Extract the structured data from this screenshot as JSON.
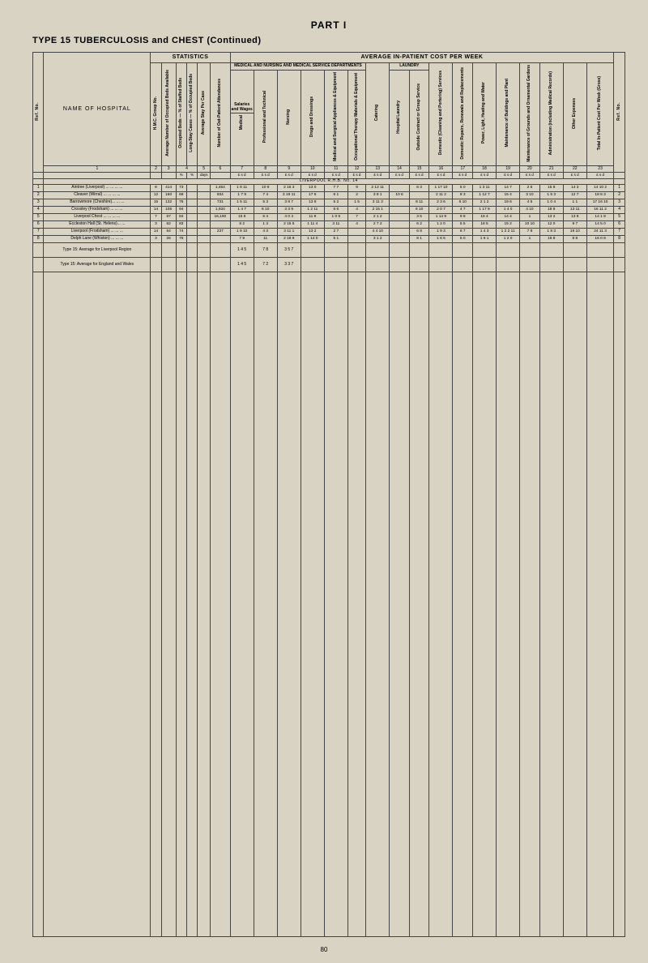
{
  "page_number": "80",
  "headings": {
    "part": "PART I",
    "type_line": "TYPE 15  TUBERCULOSIS and CHEST (Continued)"
  },
  "header": {
    "statistics": "STATISTICS",
    "avg_cost": "AVERAGE IN-PATIENT COST PER WEEK",
    "name_of_hospital": "NAME OF HOSPITAL",
    "med_nursing_top": "MEDICAL AND NURSING AND MEDICAL SERVICE DEPARTMENTS",
    "salaries_wages": "Salaries and Wages",
    "laundry": "LAUNDRY",
    "ref_no_left": "Ref. No.",
    "ref_no_right": "Ref. No.",
    "vcols": {
      "c2": "H.M.C. Group No.",
      "c3": "Average Number of Occupied Beds Available",
      "c4": "Occupied Beds — % of Staffed Beds",
      "c4b": "Long-Stay Cases — % of Occupied Beds",
      "c5": "Average Stay Per Case",
      "c6": "Number of Out-Patient Attendances",
      "c7": "Medical",
      "c8": "Professional and Technical",
      "c9": "Nursing",
      "c10": "Drugs and Dressings",
      "c11": "Medical and Surgical Appliances & Equipment",
      "c12": "Occupational Therapy Materials & Equipment",
      "c13": "Catering",
      "c14": "Hospital Laundry",
      "c15": "Outside Contract or Group Service",
      "c16": "Domestic (Cleaning and Portering) Services",
      "c17": "Domestic Repairs, Renewals and Replacements",
      "c18": "Power, Light, Heating and Water",
      "c19": "Maintenance of Buildings and Plant",
      "c20": "Maintenance of Grounds and Ornamental Gardens",
      "c21": "Administration (including Medical Records)",
      "c22": "Other Expenses",
      "c23": "Total In-Patient Cost Per Week (Gross)"
    },
    "colnums": [
      "1",
      "2",
      "3",
      "4",
      "5",
      "6",
      "7",
      "8",
      "9",
      "10",
      "11",
      "12",
      "13",
      "14",
      "15",
      "16",
      "17",
      "18",
      "19",
      "20",
      "21",
      "22",
      "23"
    ],
    "units_pct": "%",
    "units_days": "days",
    "units_lsd": "£  s  d"
  },
  "region": {
    "label": "LIVERPOOL  R.H.B. No. 14"
  },
  "hospitals": [
    {
      "ref": "1",
      "name": "Aintree (Liverpool) ... ... ... ...",
      "c2": "8",
      "c3": "414",
      "c4": "73",
      "c5": "",
      "c6": "1,454",
      "c7": "1 6 11",
      "c8": "10 9",
      "c9": "2 16 3",
      "c10": "13 0",
      "c11": "7 7",
      "c12": "9",
      "c13": "2 12 11",
      "c14": "",
      "c15": "6 3",
      "c16": "1 17 10",
      "c17": "5 0",
      "c18": "1 3 11",
      "c19": "14 7",
      "c20": "2 6",
      "c21": "15 8",
      "c22": "14 3",
      "c23": "14 10 2",
      "refR": "1"
    },
    {
      "ref": "2",
      "name": "Cleaver (Wirral) ... ... ... ...",
      "c2": "12",
      "c3": "160",
      "c4": "69",
      "c5": "",
      "c6": "934",
      "c7": "1 7 9",
      "c8": "7 4",
      "c9": "3 19 11",
      "c10": "17 6",
      "c11": "6 1",
      "c12": "2",
      "c13": "3 8 1",
      "c14": "10 6",
      "c15": "",
      "c16": "2 11 2",
      "c17": "8 3",
      "c18": "1 12 7",
      "c19": "15 4",
      "c20": "3 10",
      "c21": "1 5 3",
      "c22": "12 7",
      "c23": "18 6 3",
      "refR": "2"
    },
    {
      "ref": "3",
      "name": "Barrowmore (Cheshire)... ... ...",
      "c2": "15",
      "c3": "132",
      "c4": "76",
      "c5": "",
      "c6": "731",
      "c7": "1 5 11",
      "c8": "5 3",
      "c9": "3 8 7",
      "c10": "13 8",
      "c11": "5 2",
      "c12": "1 5",
      "c13": "3 11 3",
      "c14": "",
      "c15": "8 11",
      "c16": "2 3 6",
      "c17": "6 10",
      "c18": "2 1 2",
      "c19": "19 6",
      "c20": "4 5",
      "c21": "1 0 4",
      "c22": "1 1",
      "c23": "17 16 10",
      "refR": "3"
    },
    {
      "ref": "4",
      "name": "Crossley (Frodsham) ... ... ...",
      "c2": "14",
      "c3": "105",
      "c4": "94",
      "c5": "",
      "c6": "1,934",
      "c7": "1 4 7",
      "c8": "6 10",
      "c9": "3 3 9",
      "c10": "1 2 11",
      "c11": "6 6",
      "c12": "4",
      "c13": "2 15 1",
      "c14": "",
      "c15": "6 10",
      "c16": "2 0 7",
      "c17": "4 7",
      "c18": "1 17 9",
      "c19": "1 4 0",
      "c20": "4 10",
      "c21": "18 8",
      "c22": "13 11",
      "c23": "16 11 2",
      "refR": "4"
    },
    {
      "ref": "5",
      "name": "Liverpool Chest ... ... ... ...",
      "c2": "7",
      "c3": "67",
      "c4": "84",
      "c5": "",
      "c6": "16,190",
      "c7": "15 8",
      "c8": "6 4",
      "c9": "4 0 4",
      "c10": "11 9",
      "c11": "1 0 5",
      "c12": "7",
      "c13": "2 1 2",
      "c14": "",
      "c15": "3 5",
      "c16": "1 14 9",
      "c17": "9 8",
      "c18": "16 4",
      "c19": "14 4",
      "c20": "1",
      "c21": "13 2",
      "c22": "13 8",
      "c23": "14 1 8",
      "refR": "5"
    },
    {
      "ref": "6",
      "name": "Eccleston Hall (St. Helens)... ...",
      "c2": "3",
      "c3": "62",
      "c4": "83",
      "c5": "",
      "c6": "",
      "c7": "8 2",
      "c8": "1 3",
      "c9": "2 15 5",
      "c10": "1 11 4",
      "c11": "3 11",
      "c12": "4",
      "c13": "2 7 2",
      "c14": "",
      "c15": "6 2",
      "c16": "1 2 0",
      "c17": "5 5",
      "c18": "18 5",
      "c19": "15 2",
      "c20": "10 10",
      "c21": "12 0",
      "c22": "9 7",
      "c23": "14 5 0",
      "refR": "6"
    },
    {
      "ref": "7",
      "name": "Liverpool (Frodsham) ... ... ...",
      "c2": "14",
      "c3": "64",
      "c4": "74",
      "c5": "",
      "c6": "237",
      "c7": "1 9 10",
      "c8": "4 3",
      "c9": "3 11 1",
      "c10": "13 2",
      "c11": "2 7",
      "c12": "",
      "c13": "4 4 10",
      "c14": "",
      "c15": "6 8",
      "c16": "1 9 3",
      "c17": "6 7",
      "c18": "1 4 3",
      "c19": "1 2 2 11",
      "c20": "7 8",
      "c21": "1 8 3",
      "c22": "19 10",
      "c23": "24 11 3",
      "refR": "7"
    },
    {
      "ref": "8",
      "name": "Delph Lane (Whiston) ... ... ...",
      "c2": "3",
      "c3": "26",
      "c4": "76",
      "c5": "",
      "c6": "",
      "c7": "7 9",
      "c8": "11",
      "c9": "2 18 9",
      "c10": "1 14 0",
      "c11": "5 1",
      "c12": "",
      "c13": "3 1 2",
      "c14": "",
      "c15": "8 1",
      "c16": "1 6 5",
      "c17": "5 0",
      "c18": "1 6 1",
      "c19": "1 2 0",
      "c20": "1",
      "c21": "16 8",
      "c22": "8 8",
      "c23": "16 0 8",
      "refR": "8"
    }
  ],
  "averages": {
    "region": {
      "label": "Type 15: Average for Liverpool Region",
      "c7": "1 4 5",
      "c8": "7 8",
      "c9": "3 5 7"
    },
    "national": {
      "label": "Type 15: Average for England and Wales",
      "c7": "1 4 5",
      "c8": "7 2",
      "c9": "3 3 7"
    }
  }
}
